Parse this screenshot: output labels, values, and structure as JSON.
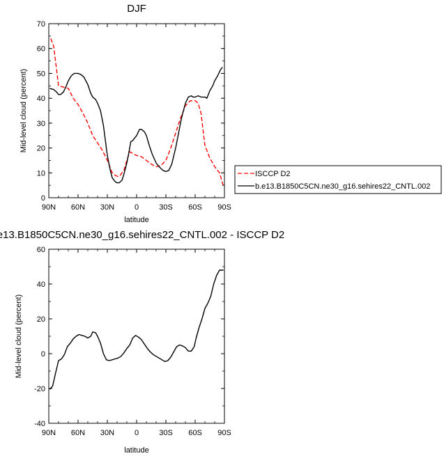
{
  "chart_data": [
    {
      "type": "line",
      "title": "DJF",
      "xlabel": "latitude",
      "ylabel": "Mid-level cloud (percent)",
      "xlim": [
        90,
        -90
      ],
      "ylim": [
        0,
        70
      ],
      "x_ticks": [
        90,
        60,
        30,
        0,
        -30,
        -60,
        -90
      ],
      "x_tick_labels": [
        "90N",
        "60N",
        "30N",
        "0",
        "30S",
        "60S",
        "90S"
      ],
      "y_ticks": [
        0,
        10,
        20,
        30,
        40,
        50,
        60,
        70
      ],
      "legend_position": "right",
      "series": [
        {
          "name": "ISCCP D2",
          "color": "#ff0000",
          "dash": true,
          "x": [
            88,
            85,
            80,
            75,
            70,
            65,
            60,
            55,
            50,
            45,
            40,
            35,
            30,
            25,
            22,
            19,
            17,
            13,
            10,
            7,
            5,
            3,
            0,
            -5,
            -10,
            -15,
            -20,
            -25,
            -30,
            -35,
            -40,
            -45,
            -50,
            -55,
            -60,
            -63,
            -66,
            -70,
            -75,
            -80,
            -85,
            -89
          ],
          "values": [
            64,
            61,
            45,
            44.5,
            44,
            40,
            37.5,
            34,
            30,
            25,
            22,
            19,
            15,
            10,
            9,
            8.5,
            9,
            11,
            15,
            18.5,
            18,
            17.5,
            17,
            16.5,
            15,
            13.5,
            12.5,
            13,
            15,
            20,
            26,
            32,
            37,
            39,
            39,
            38,
            34,
            21,
            16,
            12.5,
            10,
            4.5
          ]
        },
        {
          "name": "b.e13.B1850C5CN.ne30_g16.sehires22_CNTL.002",
          "color": "#000000",
          "dash": false,
          "x": [
            89,
            85,
            82,
            80,
            78,
            75,
            72,
            70,
            67,
            64,
            60,
            57,
            54,
            50,
            47,
            45,
            42,
            40,
            37,
            34,
            30,
            27,
            25,
            22,
            20,
            18,
            15,
            13,
            10,
            8,
            6,
            4,
            2,
            0,
            -3,
            -5,
            -8,
            -10,
            -13,
            -16,
            -20,
            -23,
            -27,
            -30,
            -33,
            -36,
            -40,
            -43,
            -46,
            -50,
            -53,
            -56,
            -58,
            -60,
            -63,
            -66,
            -70,
            -72,
            -75,
            -78,
            -80,
            -83,
            -86,
            -88
          ],
          "values": [
            44,
            43.5,
            42.5,
            41.5,
            41.5,
            42.5,
            45,
            47,
            49,
            50,
            50,
            49.5,
            48.5,
            45.5,
            42,
            40.5,
            39.5,
            38,
            35,
            29,
            17,
            11,
            8,
            6.5,
            6,
            6,
            7,
            9.5,
            14,
            18,
            22.5,
            23,
            24,
            25,
            27.5,
            27.5,
            26.5,
            25,
            21,
            17.5,
            14,
            12.5,
            11,
            10.5,
            11,
            13.5,
            20,
            26,
            32,
            38,
            40.5,
            41,
            40.5,
            40.5,
            41,
            40.5,
            40.5,
            40,
            43,
            45,
            47,
            49,
            51.5,
            52.5
          ]
        }
      ]
    },
    {
      "type": "line",
      "title": "e13.B1850C5CN.ne30_g16.sehires22_CNTL.002 - ISCCP D2",
      "xlabel": "latitude",
      "ylabel": "Mid-level cloud (percent)",
      "xlim": [
        90,
        -90
      ],
      "ylim": [
        -40,
        60
      ],
      "x_ticks": [
        90,
        60,
        30,
        0,
        -30,
        -60,
        -90
      ],
      "x_tick_labels": [
        "90N",
        "60N",
        "30N",
        "0",
        "30S",
        "60S",
        "90S"
      ],
      "y_ticks": [
        -40,
        -20,
        0,
        20,
        40,
        60
      ],
      "series": [
        {
          "color": "#000000",
          "x": [
            89,
            86,
            83,
            80,
            77,
            74,
            71,
            68,
            65,
            62,
            59,
            56,
            53,
            50,
            47,
            45,
            42,
            40,
            37,
            34,
            31,
            28,
            25,
            22,
            19,
            16,
            13,
            10,
            7,
            4,
            1,
            -2,
            -5,
            -8,
            -11,
            -14,
            -17,
            -20,
            -23,
            -26,
            -29,
            -32,
            -35,
            -38,
            -41,
            -44,
            -47,
            -50,
            -53,
            -56,
            -59,
            -61,
            -64,
            -67,
            -70,
            -73,
            -76,
            -79,
            -82,
            -85,
            -88,
            -89
          ],
          "values": [
            -20.5,
            -18.5,
            -11,
            -4,
            -3,
            -0.5,
            4,
            6,
            8.5,
            10,
            11,
            10.5,
            10,
            9,
            10,
            12.5,
            12,
            10,
            6,
            0,
            -3.5,
            -4,
            -3.5,
            -3,
            -2.5,
            -1.5,
            0.5,
            3,
            5,
            9,
            10.5,
            9.5,
            8,
            5.5,
            3,
            1,
            -0.5,
            -1.5,
            -2.5,
            -3.5,
            -4.5,
            -4,
            -2,
            1,
            4,
            5,
            4.5,
            3.5,
            1.5,
            1.5,
            4,
            9,
            15,
            20,
            26,
            29,
            33,
            40,
            45,
            48,
            48,
            48
          ]
        }
      ]
    }
  ]
}
